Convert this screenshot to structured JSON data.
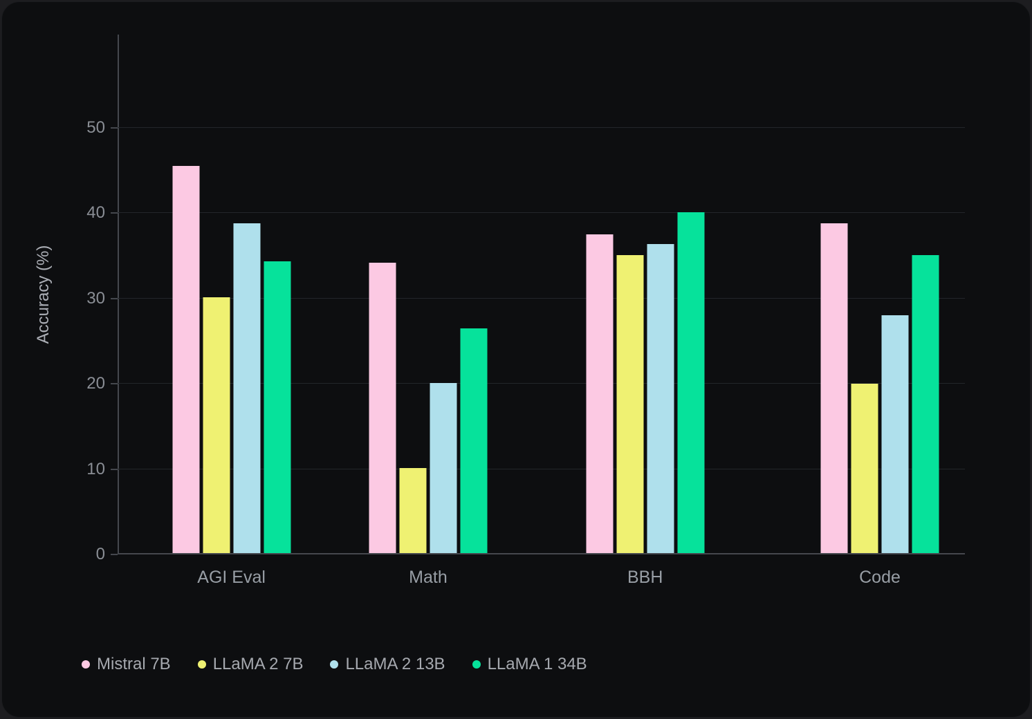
{
  "chart_data": {
    "type": "bar",
    "title": "",
    "xlabel": "",
    "ylabel": "Accuracy (%)",
    "categories": [
      "AGI Eval",
      "Math",
      "BBH",
      "Code"
    ],
    "series": [
      {
        "name": "Mistral 7B",
        "color": "#fcc9e3",
        "values": [
          45.5,
          34.2,
          37.5,
          38.8
        ]
      },
      {
        "name": "LLaMA 2 7B",
        "color": "#eff172",
        "values": [
          30.1,
          10.1,
          35.1,
          20.0
        ]
      },
      {
        "name": "LLaMA 2 13B",
        "color": "#afe0ec",
        "values": [
          38.8,
          20.1,
          36.4,
          28.0
        ]
      },
      {
        "name": "LLaMA 1 34B",
        "color": "#06e29b",
        "values": [
          34.3,
          26.5,
          40.1,
          35.1
        ]
      }
    ],
    "y_ticks": [
      0,
      10,
      20,
      30,
      40,
      50
    ],
    "ylim": [
      0,
      60.9
    ],
    "grid": true,
    "legend_position": "bottom-left",
    "layout": {
      "group_centers_pct": [
        13.44,
        36.65,
        62.26,
        89.96
      ]
    }
  }
}
